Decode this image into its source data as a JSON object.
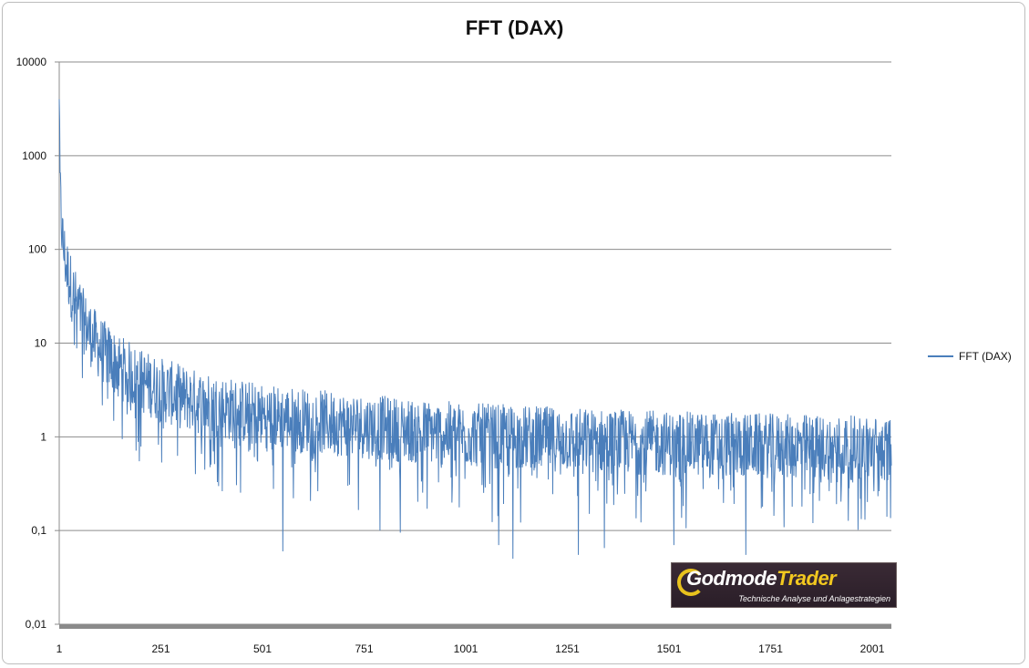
{
  "chart_data": {
    "type": "line",
    "title": "FFT (DAX)",
    "xlabel": "",
    "ylabel": "",
    "y_scale": "log",
    "ylim": [
      0.01,
      10000
    ],
    "xlim": [
      1,
      2048
    ],
    "y_tick_labels": [
      "10000",
      "1000",
      "100",
      "10",
      "1",
      "0,1",
      "0,01"
    ],
    "y_tick_values": [
      10000,
      1000,
      100,
      10,
      1,
      0.1,
      0.01
    ],
    "x_tick_labels": [
      "1",
      "251",
      "501",
      "751",
      "1001",
      "1251",
      "1501",
      "1751",
      "2001"
    ],
    "x_tick_values": [
      1,
      251,
      501,
      751,
      1001,
      1251,
      1501,
      1751,
      2001
    ],
    "grid": true,
    "legend_position": "right",
    "series": [
      {
        "name": "FFT (DAX)",
        "color": "#4a7ebb",
        "envelope": [
          {
            "x": 1,
            "y": 4000
          },
          {
            "x": 3,
            "y": 500
          },
          {
            "x": 10,
            "y": 120
          },
          {
            "x": 25,
            "y": 50
          },
          {
            "x": 50,
            "y": 22
          },
          {
            "x": 100,
            "y": 9
          },
          {
            "x": 200,
            "y": 4
          },
          {
            "x": 350,
            "y": 2.3
          },
          {
            "x": 500,
            "y": 1.7
          },
          {
            "x": 750,
            "y": 1.3
          },
          {
            "x": 1000,
            "y": 1.05
          },
          {
            "x": 1500,
            "y": 0.85
          },
          {
            "x": 2048,
            "y": 0.75
          }
        ],
        "dips": [
          {
            "x": 551,
            "y": 0.06
          },
          {
            "x": 790,
            "y": 0.1
          },
          {
            "x": 840,
            "y": 0.095
          },
          {
            "x": 1082,
            "y": 0.07
          },
          {
            "x": 1117,
            "y": 0.05
          },
          {
            "x": 1278,
            "y": 0.055
          },
          {
            "x": 1342,
            "y": 0.065
          },
          {
            "x": 1513,
            "y": 0.07
          },
          {
            "x": 1690,
            "y": 0.055
          }
        ]
      }
    ]
  },
  "watermark": {
    "brand_part1": "Godmode",
    "brand_part2": "Trader",
    "tagline": "Technische Analyse und Anlagestrategien"
  }
}
